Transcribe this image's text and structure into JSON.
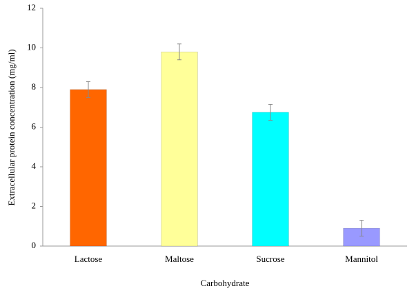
{
  "chart_data": {
    "type": "bar",
    "x_label": "Carbohydrate",
    "y_label": "Extracellular protein concentration (mg/ml)",
    "categories": [
      "Lactose",
      "Maltose",
      "Sucrose",
      "Mannitol"
    ],
    "values": [
      7.9,
      9.8,
      6.75,
      0.9
    ],
    "errors": [
      0.4,
      0.4,
      0.4,
      0.4
    ],
    "colors": [
      "#ff6600",
      "#ffff99",
      "#00ffff",
      "#9999ff"
    ],
    "ylim": [
      0,
      12
    ],
    "yticks": [
      0,
      2,
      4,
      6,
      8,
      10,
      12
    ],
    "grid": false
  }
}
